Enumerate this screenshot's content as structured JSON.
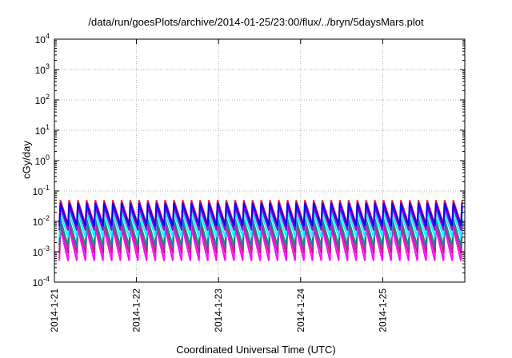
{
  "chart_data": {
    "type": "line",
    "title": "/data/run/goesPlots/archive/2014-01-25/23:00/flux/../bryn/5daysMars.plot",
    "xlabel": "Coordinated Universal Time (UTC)",
    "ylabel": "cGy/day",
    "x_ticks": [
      "2014-1-21",
      "2014-1-22",
      "2014-1-23",
      "2014-1-24",
      "2014-1-25"
    ],
    "x_range_days": [
      0,
      5
    ],
    "y_scale": "log",
    "ylim": [
      0.0001,
      10000
    ],
    "y_ticks": [
      {
        "base": "10",
        "exp": "-4"
      },
      {
        "base": "10",
        "exp": "-3"
      },
      {
        "base": "10",
        "exp": "-2"
      },
      {
        "base": "10",
        "exp": "-1"
      },
      {
        "base": "10",
        "exp": "0"
      },
      {
        "base": "10",
        "exp": "1"
      },
      {
        "base": "10",
        "exp": "2"
      },
      {
        "base": "10",
        "exp": "3"
      },
      {
        "base": "10",
        "exp": "4"
      }
    ],
    "grid": true,
    "pattern": {
      "description": "sawtooth, ~9.4 cycles per day",
      "cycles_per_day": 9.4,
      "phase_days": 0.06
    },
    "series": [
      {
        "color": "#ff00ff",
        "peak": 0.006,
        "trough": 0.0005
      },
      {
        "color": "#c71585",
        "peak": 0.009,
        "trough": 0.0009
      },
      {
        "color": "#008b8b",
        "peak": 0.012,
        "trough": 0.0015
      },
      {
        "color": "#00ffff",
        "peak": 0.02,
        "trough": 0.003
      },
      {
        "color": "#9400d3",
        "peak": 0.03,
        "trough": 0.005
      },
      {
        "color": "#dc143c",
        "peak": 0.05,
        "trough": 0.008
      },
      {
        "color": "#0000ff",
        "peak": 0.04,
        "trough": 0.007
      }
    ]
  }
}
